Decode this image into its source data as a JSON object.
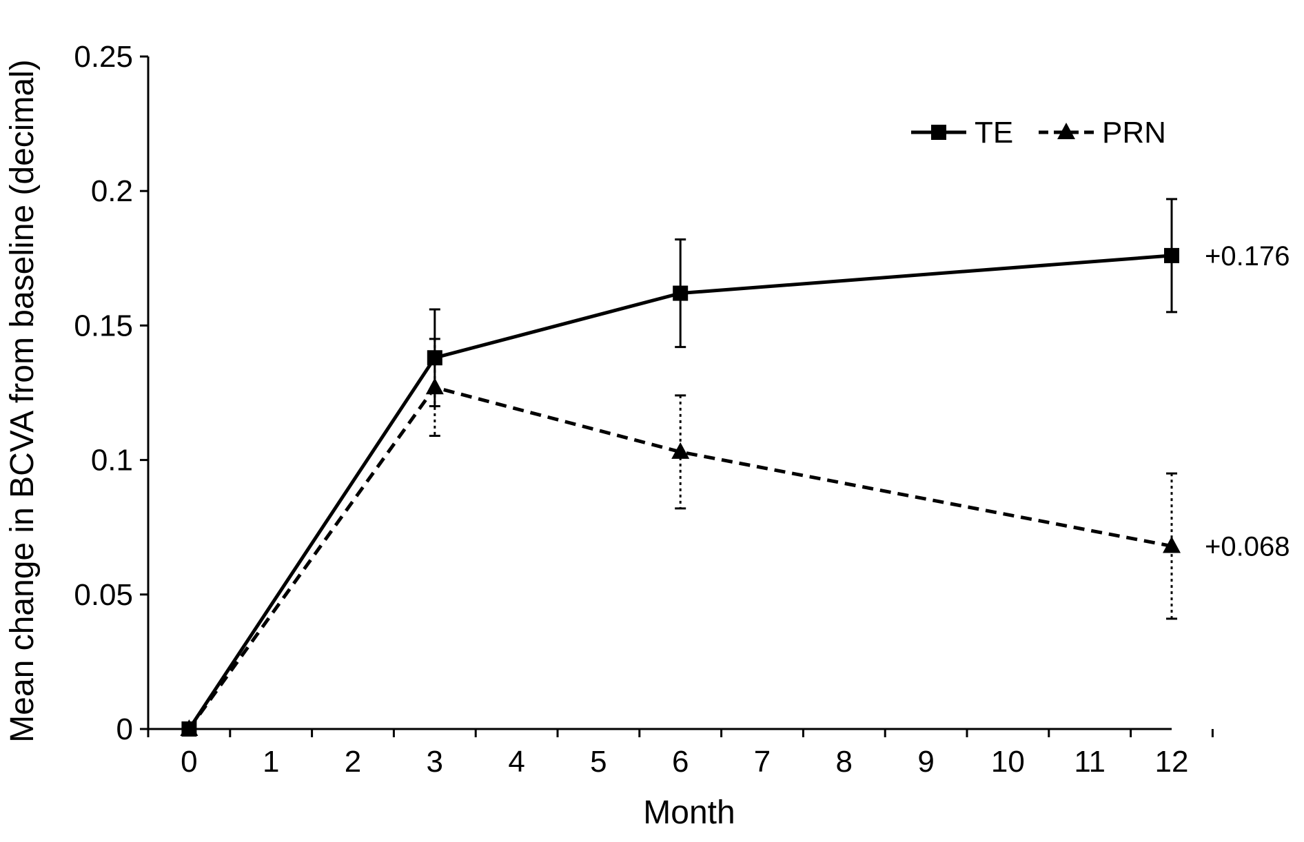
{
  "chart_data": {
    "type": "line",
    "xlabel": "Month",
    "ylabel": "Mean change in BCVA from baseline (decimal)",
    "xlim": [
      -0.5,
      12
    ],
    "ylim": [
      0,
      0.25
    ],
    "x_ticks": [
      "0",
      "1",
      "2",
      "3",
      "4",
      "5",
      "6",
      "7",
      "8",
      "9",
      "10",
      "11",
      "12"
    ],
    "y_ticks": [
      "0",
      "0.05",
      "0.1",
      "0.15",
      "0.2",
      "0.25"
    ],
    "grid": false,
    "legend_position": "top-right",
    "series": [
      {
        "name": "TE",
        "line_style": "solid",
        "marker": "square",
        "error_bar_style": "solid",
        "x": [
          0,
          3,
          6,
          12
        ],
        "y": [
          0,
          0.138,
          0.162,
          0.176
        ],
        "err": [
          0,
          0.018,
          0.02,
          0.021
        ]
      },
      {
        "name": "PRN",
        "line_style": "dashed",
        "marker": "triangle",
        "error_bar_style": "dotted",
        "x": [
          0,
          3,
          6,
          12
        ],
        "y": [
          0,
          0.127,
          0.103,
          0.068
        ],
        "err": [
          0,
          0.018,
          0.021,
          0.027
        ]
      }
    ],
    "annotations": [
      {
        "text": "+0.176",
        "x": 12,
        "y": 0.176
      },
      {
        "text": "+0.068",
        "x": 12,
        "y": 0.068
      }
    ]
  }
}
